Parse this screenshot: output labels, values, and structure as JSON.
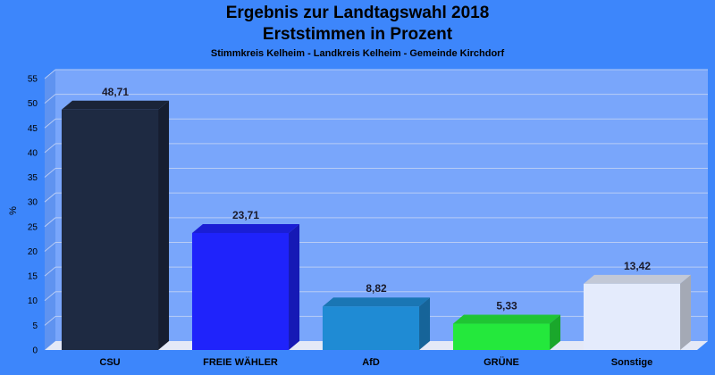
{
  "chart_data": {
    "type": "bar",
    "title": "Ergebnis zur Landtagswahl 2018",
    "subtitle": "Erststimmen in Prozent",
    "subtitle2": "Stimmkreis Kelheim - Landkreis Kelheim - Gemeinde Kirchdorf",
    "ylabel": "%",
    "xlabel": "",
    "ylim": [
      0,
      55
    ],
    "yticks": [
      0,
      5,
      10,
      15,
      20,
      25,
      30,
      35,
      40,
      45,
      50,
      55
    ],
    "grid": true,
    "categories": [
      "CSU",
      "FREIE WÄHLER",
      "AfD",
      "GRÜNE",
      "Sonstige"
    ],
    "values": [
      48.71,
      23.71,
      8.82,
      5.33,
      13.42
    ],
    "value_labels": [
      "48,71",
      "23,71",
      "8,82",
      "5,33",
      "13,42"
    ],
    "colors": [
      "#1e2a42",
      "#1f23fb",
      "#1f8bd4",
      "#24e83c",
      "#e4ebfc"
    ]
  },
  "theme": {
    "background": "#3d86fb",
    "plot_area": "#79a6fb",
    "floor": "#e4e9f7"
  }
}
